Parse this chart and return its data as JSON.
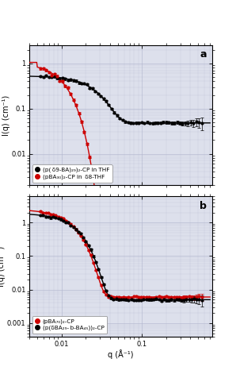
{
  "background_color": "#dde0ec",
  "fig_bg": "#ffffff",
  "panel_a": {
    "label": "a",
    "xlim": [
      0.004,
      0.75
    ],
    "ylim": [
      0.002,
      2.5
    ],
    "ylim_log": [
      -2.7,
      0.4
    ],
    "ylabel": "I(q) (cm⁻¹)",
    "black_I0": 0.48,
    "black_Rg": 60,
    "black_bg": 0.048,
    "black_osc_R": 40,
    "black_osc_amp": 0.0,
    "red_I0": 1.05,
    "red_Rg": 140,
    "red_bg": 0.0,
    "red_drop_q": 0.07,
    "legend_loc": "lower left"
  },
  "panel_b": {
    "label": "b",
    "xlim": [
      0.004,
      0.75
    ],
    "ylim": [
      0.0004,
      6.0
    ],
    "ylabel": "I(q) (cm⁻¹)",
    "red_I0": 2.5,
    "red_Rg": 130,
    "red_bg": 0.006,
    "black_I0": 1.9,
    "black_Rg": 115,
    "black_bg": 0.005,
    "legend_loc": "lower left"
  },
  "xlabel": "q (Å⁻¹)",
  "black_color": "#000000",
  "red_color": "#cc0000"
}
